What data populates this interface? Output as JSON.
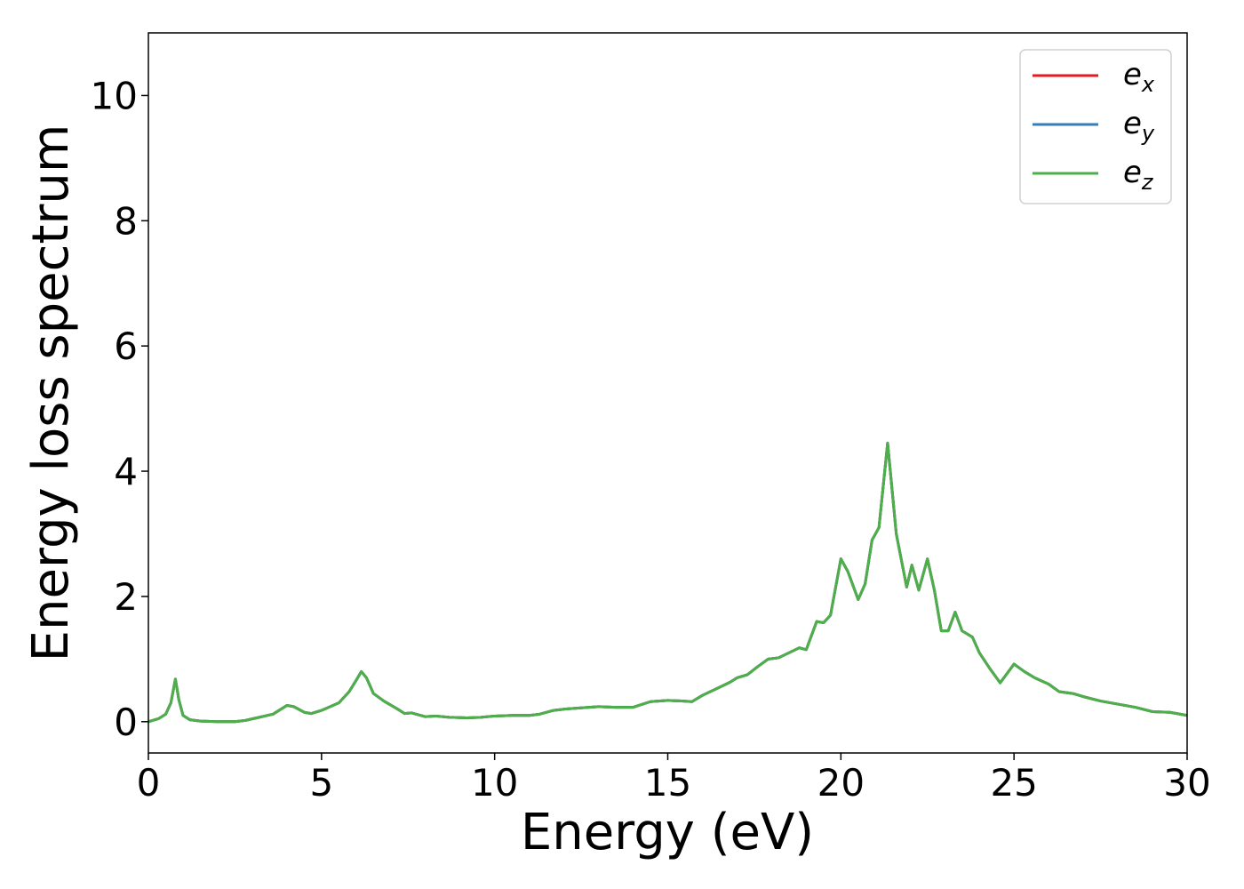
{
  "chart_data": {
    "type": "line",
    "xlabel": "Energy (eV)",
    "ylabel": "Energy loss spectrum",
    "x": [
      0,
      0.3,
      0.5,
      0.65,
      0.78,
      0.88,
      1.0,
      1.2,
      1.5,
      2.0,
      2.5,
      2.8,
      3.2,
      3.6,
      4.0,
      4.2,
      4.5,
      4.7,
      5.0,
      5.5,
      5.8,
      6.0,
      6.15,
      6.3,
      6.5,
      6.8,
      7.2,
      7.4,
      7.6,
      8.0,
      8.3,
      8.7,
      9.2,
      9.6,
      10.0,
      10.5,
      11.0,
      11.3,
      11.7,
      12.0,
      12.5,
      13.0,
      13.5,
      14.0,
      14.5,
      15.0,
      15.4,
      15.7,
      16.0,
      16.5,
      16.8,
      17.0,
      17.3,
      17.6,
      17.9,
      18.2,
      18.5,
      18.8,
      19.0,
      19.3,
      19.5,
      19.7,
      20.0,
      20.2,
      20.5,
      20.7,
      20.9,
      21.1,
      21.35,
      21.6,
      21.9,
      22.05,
      22.25,
      22.5,
      22.7,
      22.9,
      23.1,
      23.3,
      23.5,
      23.8,
      24.0,
      24.3,
      24.6,
      25.0,
      25.3,
      25.6,
      26.0,
      26.3,
      26.7,
      27.0,
      27.5,
      28.0,
      28.5,
      29.0,
      29.5,
      30.0
    ],
    "series": [
      {
        "name": "ex",
        "color": "#e41a1c",
        "values": [
          0.0,
          0.05,
          0.12,
          0.3,
          0.68,
          0.35,
          0.1,
          0.03,
          0.01,
          0.0,
          0.0,
          0.02,
          0.07,
          0.12,
          0.26,
          0.24,
          0.15,
          0.13,
          0.18,
          0.3,
          0.48,
          0.66,
          0.8,
          0.7,
          0.45,
          0.33,
          0.2,
          0.13,
          0.14,
          0.08,
          0.09,
          0.07,
          0.06,
          0.07,
          0.09,
          0.1,
          0.1,
          0.12,
          0.18,
          0.2,
          0.22,
          0.24,
          0.23,
          0.23,
          0.32,
          0.34,
          0.33,
          0.32,
          0.42,
          0.55,
          0.63,
          0.7,
          0.75,
          0.88,
          1.0,
          1.02,
          1.1,
          1.18,
          1.15,
          1.6,
          1.58,
          1.7,
          2.6,
          2.4,
          1.95,
          2.2,
          2.9,
          3.1,
          4.45,
          3.0,
          2.15,
          2.5,
          2.1,
          2.6,
          2.1,
          1.45,
          1.45,
          1.75,
          1.45,
          1.35,
          1.1,
          0.85,
          0.62,
          0.92,
          0.8,
          0.7,
          0.6,
          0.48,
          0.45,
          0.4,
          0.33,
          0.28,
          0.23,
          0.16,
          0.15,
          0.1
        ]
      },
      {
        "name": "ey",
        "color": "#377eb8",
        "values": [
          0.0,
          0.05,
          0.12,
          0.3,
          0.68,
          0.35,
          0.1,
          0.03,
          0.01,
          0.0,
          0.0,
          0.02,
          0.07,
          0.12,
          0.26,
          0.24,
          0.15,
          0.13,
          0.18,
          0.3,
          0.48,
          0.66,
          0.8,
          0.7,
          0.45,
          0.33,
          0.2,
          0.13,
          0.14,
          0.08,
          0.09,
          0.07,
          0.06,
          0.07,
          0.09,
          0.1,
          0.1,
          0.12,
          0.18,
          0.2,
          0.22,
          0.24,
          0.23,
          0.23,
          0.32,
          0.34,
          0.33,
          0.32,
          0.42,
          0.55,
          0.63,
          0.7,
          0.75,
          0.88,
          1.0,
          1.02,
          1.1,
          1.18,
          1.15,
          1.6,
          1.58,
          1.7,
          2.6,
          2.4,
          1.95,
          2.2,
          2.9,
          3.1,
          4.45,
          3.0,
          2.15,
          2.5,
          2.1,
          2.6,
          2.1,
          1.45,
          1.45,
          1.75,
          1.45,
          1.35,
          1.1,
          0.85,
          0.62,
          0.92,
          0.8,
          0.7,
          0.6,
          0.48,
          0.45,
          0.4,
          0.33,
          0.28,
          0.23,
          0.16,
          0.15,
          0.1
        ]
      },
      {
        "name": "ez",
        "color": "#4daf4a",
        "values": [
          0.0,
          0.05,
          0.12,
          0.3,
          0.68,
          0.35,
          0.1,
          0.03,
          0.01,
          0.0,
          0.0,
          0.02,
          0.07,
          0.12,
          0.26,
          0.24,
          0.15,
          0.13,
          0.18,
          0.3,
          0.48,
          0.66,
          0.8,
          0.7,
          0.45,
          0.33,
          0.2,
          0.13,
          0.14,
          0.08,
          0.09,
          0.07,
          0.06,
          0.07,
          0.09,
          0.1,
          0.1,
          0.12,
          0.18,
          0.2,
          0.22,
          0.24,
          0.23,
          0.23,
          0.32,
          0.34,
          0.33,
          0.32,
          0.42,
          0.55,
          0.63,
          0.7,
          0.75,
          0.88,
          1.0,
          1.02,
          1.1,
          1.18,
          1.15,
          1.6,
          1.58,
          1.7,
          2.6,
          2.4,
          1.95,
          2.2,
          2.9,
          3.1,
          4.45,
          3.0,
          2.15,
          2.5,
          2.1,
          2.6,
          2.1,
          1.45,
          1.45,
          1.75,
          1.45,
          1.35,
          1.1,
          0.85,
          0.62,
          0.92,
          0.8,
          0.7,
          0.6,
          0.48,
          0.45,
          0.4,
          0.33,
          0.28,
          0.23,
          0.16,
          0.15,
          0.1
        ]
      }
    ],
    "xlim": [
      0,
      30
    ],
    "xticks": [
      0,
      5,
      10,
      15,
      20,
      25,
      30
    ],
    "ylim": [
      -0.5,
      11
    ],
    "yticks": [
      0,
      2,
      4,
      6,
      8,
      10
    ],
    "grid": false,
    "legend": "upper right"
  }
}
